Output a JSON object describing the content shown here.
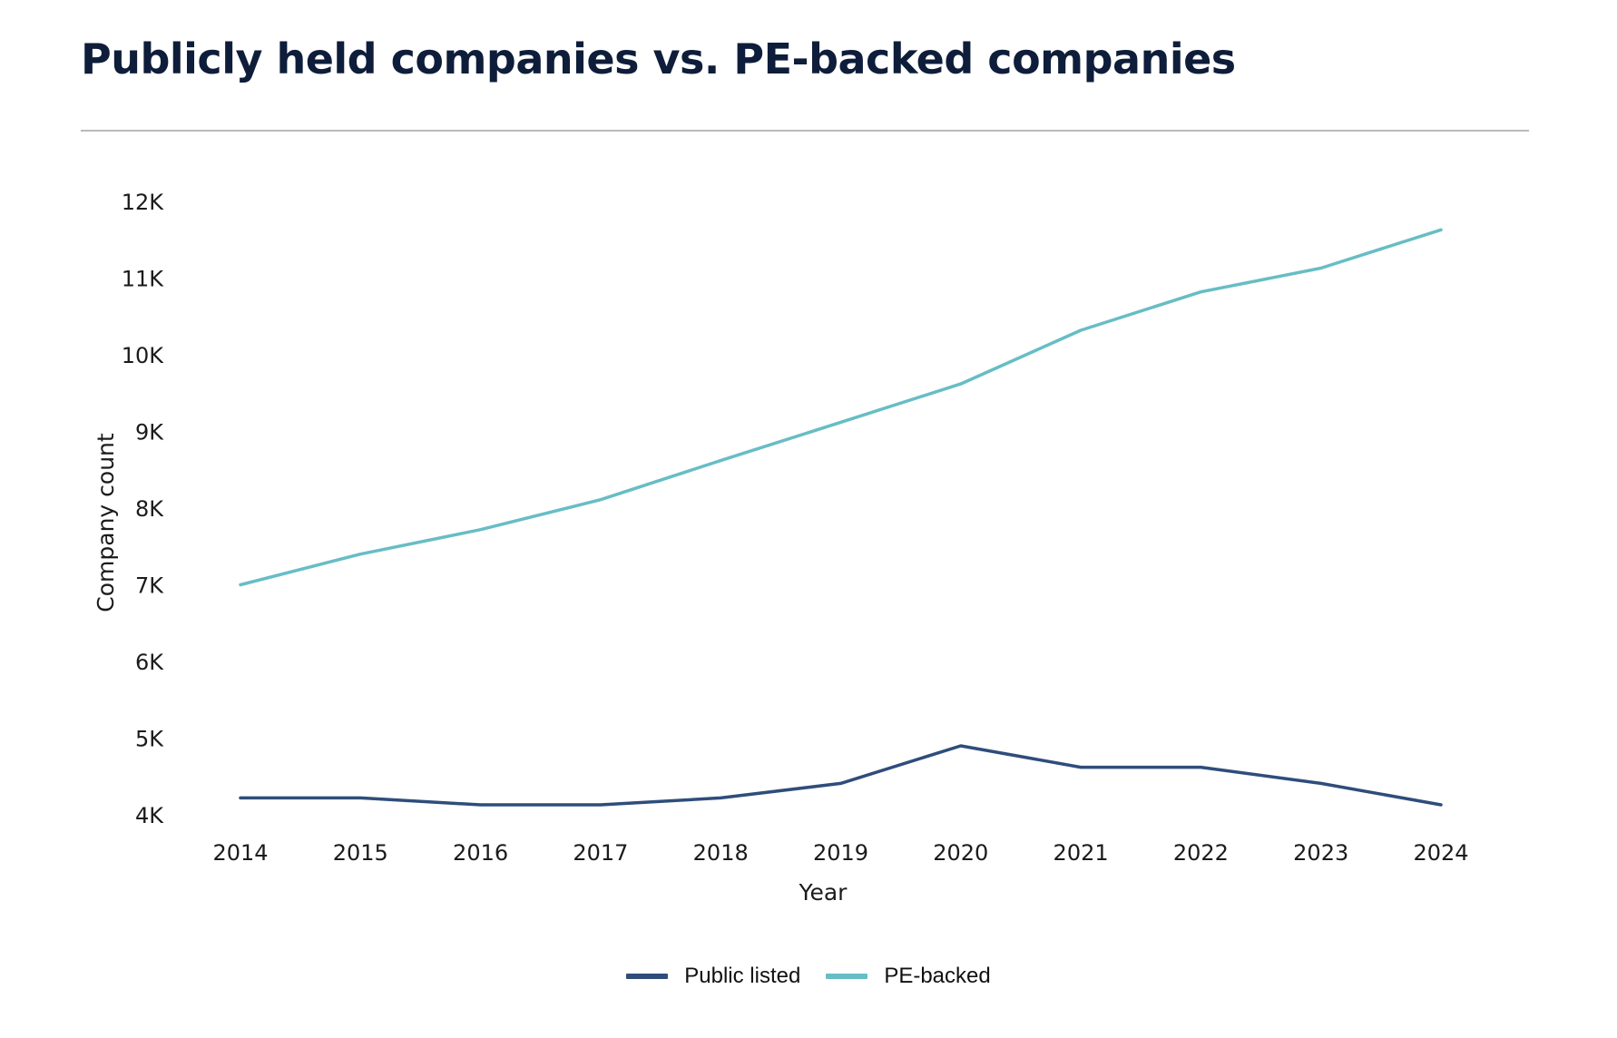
{
  "title": "Publicly held companies vs. PE-backed companies",
  "chart_data": {
    "type": "line",
    "title": "Publicly held companies vs. PE-backed companies",
    "xlabel": "Year",
    "ylabel": "Company count",
    "categories": [
      "2014",
      "2015",
      "2016",
      "2017",
      "2018",
      "2019",
      "2020",
      "2021",
      "2022",
      "2023",
      "2024"
    ],
    "y_ticks": [
      4000,
      5000,
      6000,
      7000,
      8000,
      9000,
      10000,
      11000,
      12000
    ],
    "y_tick_labels": [
      "4K",
      "5K",
      "6K",
      "7K",
      "8K",
      "9K",
      "10K",
      "11K",
      "12K"
    ],
    "ylim": [
      4000,
      12000
    ],
    "grid": false,
    "legend_position": "bottom-center",
    "series": [
      {
        "name": "Public listed",
        "color": "#2e4d7b",
        "values": [
          4220,
          4220,
          4130,
          4130,
          4220,
          4410,
          4900,
          4620,
          4620,
          4410,
          4130
        ]
      },
      {
        "name": "PE-backed",
        "color": "#67bdc5",
        "values": [
          7000,
          7400,
          7720,
          8110,
          8620,
          9120,
          9620,
          10320,
          10820,
          11130,
          11630
        ]
      }
    ]
  }
}
